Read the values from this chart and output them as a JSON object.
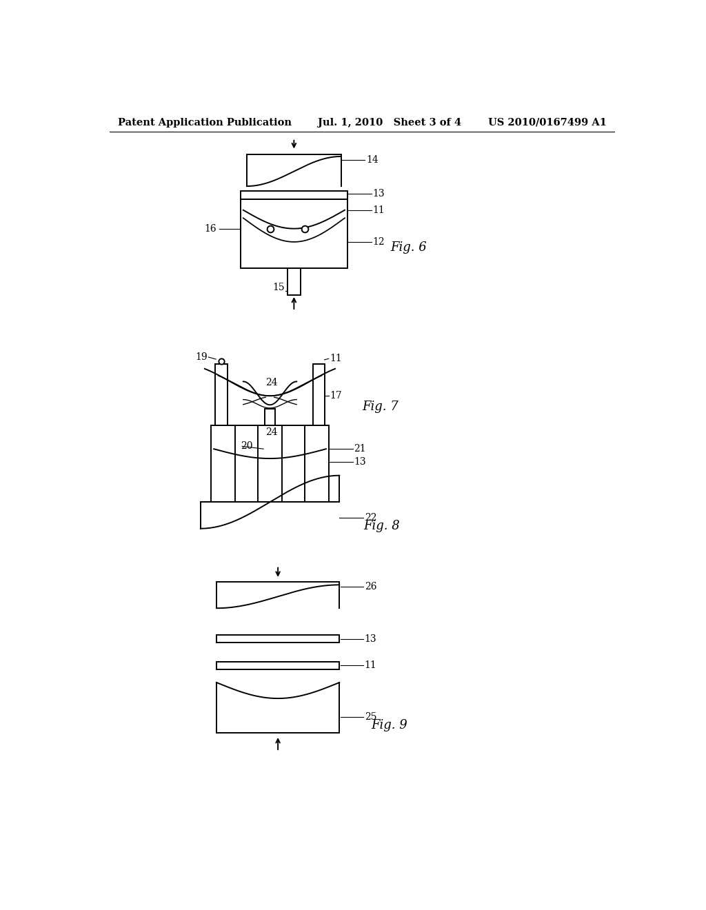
{
  "background_color": "#ffffff",
  "header_left": "Patent Application Publication",
  "header_mid": "Jul. 1, 2010   Sheet 3 of 4",
  "header_right": "US 2010/0167499 A1",
  "header_fontsize": 10.5,
  "fig_label_fontsize": 13,
  "annotation_fontsize": 10,
  "line_color": "#000000",
  "line_width": 1.4
}
